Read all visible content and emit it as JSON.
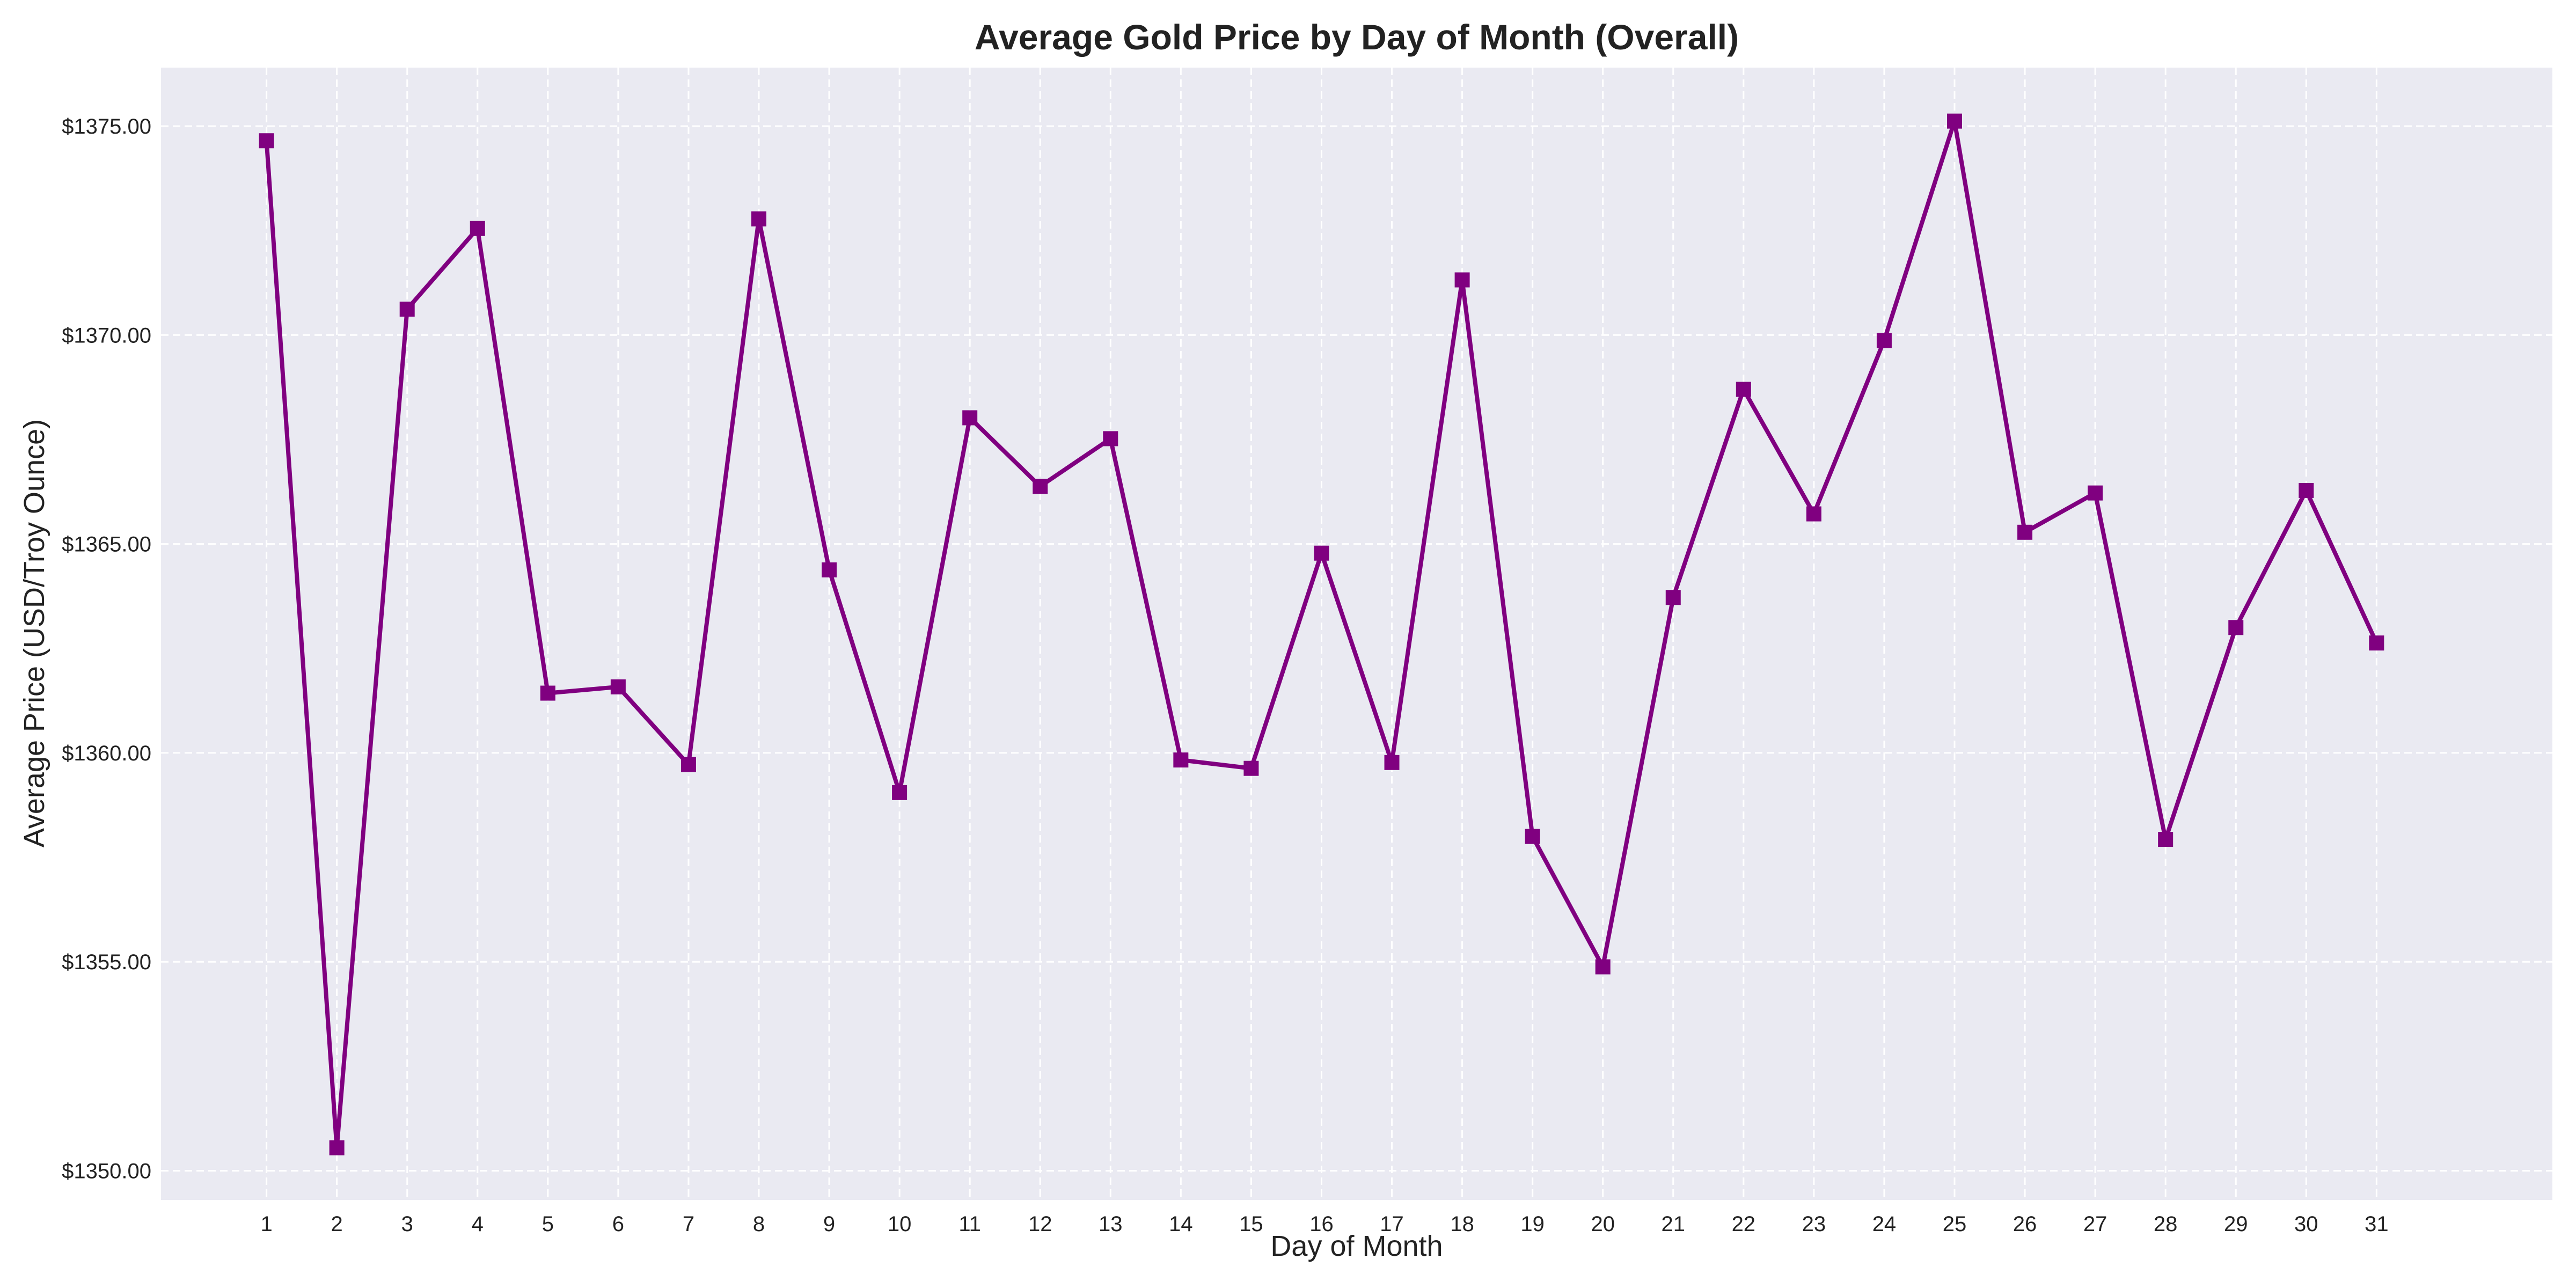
{
  "chart_data": {
    "type": "line",
    "title": "Average Gold Price by Day of Month (Overall)",
    "xlabel": "Day of Month",
    "ylabel": "Average Price (USD/Troy Ounce)",
    "x": [
      1,
      2,
      3,
      4,
      5,
      6,
      7,
      8,
      9,
      10,
      11,
      12,
      13,
      14,
      15,
      16,
      17,
      18,
      19,
      20,
      21,
      22,
      23,
      24,
      25,
      26,
      27,
      28,
      29,
      30,
      31
    ],
    "x_tick_labels": [
      "1",
      "2",
      "3",
      "4",
      "5",
      "6",
      "7",
      "8",
      "9",
      "10",
      "11",
      "12",
      "13",
      "14",
      "15",
      "16",
      "17",
      "18",
      "19",
      "20",
      "21",
      "22",
      "23",
      "24",
      "25",
      "26",
      "27",
      "28",
      "29",
      "30",
      "31"
    ],
    "series": [
      {
        "values": [
          1374.65,
          1350.55,
          1370.62,
          1372.55,
          1361.43,
          1361.58,
          1359.72,
          1372.78,
          1364.38,
          1359.05,
          1368.02,
          1366.38,
          1367.52,
          1359.83,
          1359.63,
          1364.78,
          1359.77,
          1371.32,
          1358.0,
          1354.88,
          1363.72,
          1368.7,
          1365.72,
          1369.87,
          1375.12,
          1365.28,
          1366.22,
          1357.93,
          1363.0,
          1366.28,
          1362.63
        ],
        "color": "#800080",
        "marker": "square"
      }
    ],
    "xlim": [
      -0.5,
      33.5
    ],
    "ylim": [
      1349.3,
      1376.4
    ],
    "y_ticks": [
      1350,
      1355,
      1360,
      1365,
      1370,
      1375
    ],
    "y_tick_labels": [
      "$1350.00",
      "$1355.00",
      "$1360.00",
      "$1365.00",
      "$1370.00",
      "$1375.00"
    ],
    "grid": true,
    "legend": "none",
    "colors": {
      "plot_background": "#eaeaf2",
      "grid": "#ffffff",
      "line": "#800080"
    }
  }
}
